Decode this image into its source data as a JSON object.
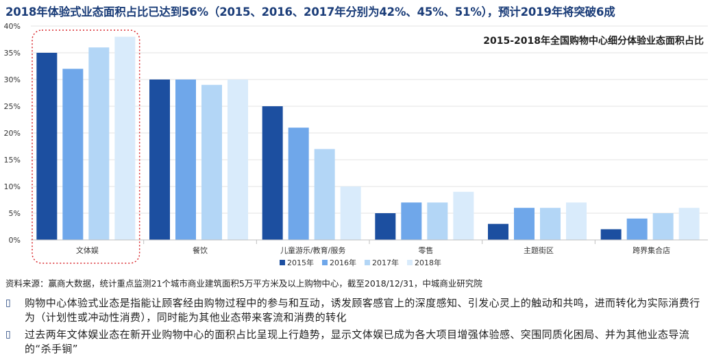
{
  "headline": "2018年体验式业态面积占比已达到56%（2015、2016、2017年分别为42%、45%、51%），预计2019年将突破6成",
  "chart_data": {
    "type": "bar",
    "title": "2015-2018年全国购物中心细分体验业态面积占比",
    "categories": [
      "文体娱",
      "餐饮",
      "儿童游乐/教育/服务",
      "零售",
      "主题街区",
      "跨界集合店"
    ],
    "series": [
      {
        "name": "2015年",
        "color": "#1c4fa0",
        "values": [
          35,
          30,
          25,
          5,
          3,
          2
        ]
      },
      {
        "name": "2016年",
        "color": "#6fa7ea",
        "values": [
          32,
          30,
          21,
          7,
          6,
          4
        ]
      },
      {
        "name": "2017年",
        "color": "#b3d6f6",
        "values": [
          36,
          29,
          17,
          7,
          6,
          5
        ]
      },
      {
        "name": "2018年",
        "color": "#d9ebfb",
        "values": [
          38,
          30,
          10,
          9,
          7,
          6
        ]
      }
    ],
    "yticks": [
      "0%",
      "5%",
      "10%",
      "15%",
      "20%",
      "25%",
      "30%",
      "35%",
      "40%"
    ],
    "ylim": [
      0,
      40
    ],
    "legend": "bottom",
    "highlight": "文体娱"
  },
  "source": "资料来源：赢商大数据，统计重点监测21个城市商业建筑面积5万平方米及以上购物中心，截至2018/12/31，中城商业研究院",
  "bullets": [
    {
      "icon": "square-bullet-icon",
      "text": "购物中心体验式业态是指能让顾客经由购物过程中的参与和互动，诱发顾客感官上的深度感知、引发心灵上的触动和共鸣，进而转化为实际消费行为（计划性或冲动性消费），同时能为其他业态带来客流和消费的转化"
    },
    {
      "icon": "square-bullet-icon",
      "text": "过去两年文体娱业态在新开业购物中心的面积占比呈现上行趋势，显示文体娱已成为各大项目增强体验感、突围同质化困局、并为其他业态导流的“杀手锏”"
    }
  ]
}
